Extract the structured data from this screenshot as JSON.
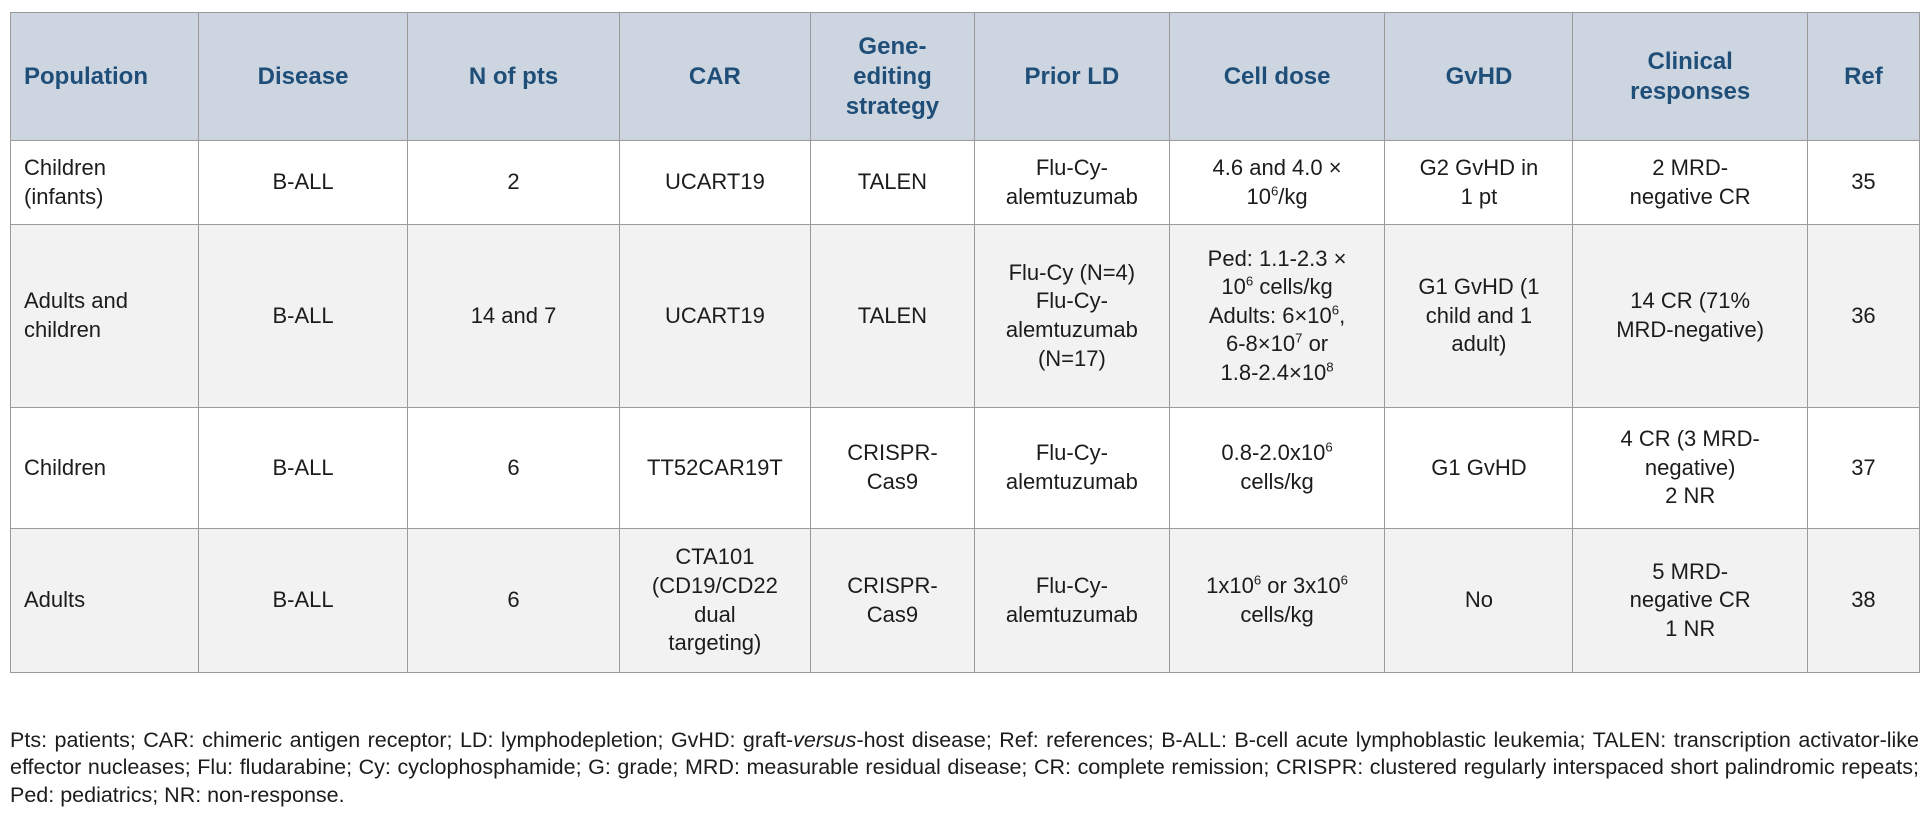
{
  "theme": {
    "header_bg": "#cdd6e0",
    "header_text": "#1f4e79",
    "row_bg": "#ffffff",
    "row_alt_bg": "#f2f2f2",
    "border_color": "#9a9a9a",
    "body_text": "#1c1c1c"
  },
  "table": {
    "columns": [
      {
        "id": "population",
        "label": "Population"
      },
      {
        "id": "disease",
        "label": "Disease"
      },
      {
        "id": "n-of-pts",
        "label": "N of pts"
      },
      {
        "id": "car",
        "label": "CAR"
      },
      {
        "id": "gene-editing-strategy",
        "label": "Gene-\nediting\nstrategy"
      },
      {
        "id": "prior-ld",
        "label": "Prior LD"
      },
      {
        "id": "cell-dose",
        "label": "Cell dose"
      },
      {
        "id": "gvhd",
        "label": "GvHD"
      },
      {
        "id": "clinical-responses",
        "label": "Clinical\nresponses"
      },
      {
        "id": "ref",
        "label": "Ref"
      }
    ],
    "rows": [
      {
        "cells": [
          "Children\n(infants)",
          "B-ALL",
          "2",
          "UCART19",
          "TALEN",
          "Flu-Cy-\nalemtuzumab",
          "4.6 and 4.0 ×\n10^6/kg",
          "G2 GvHD in\n1 pt",
          "2 MRD-\nnegative CR",
          "35"
        ]
      },
      {
        "cells": [
          "Adults and\nchildren",
          "B-ALL",
          "14 and 7",
          "UCART19",
          "TALEN",
          "Flu-Cy (N=4)\nFlu-Cy-\nalemtuzumab\n(N=17)",
          "Ped: 1.1-2.3 ×\n10^6 cells/kg\nAdults: 6×10^6,\n6-8×10^7 or\n1.8-2.4×10^8",
          "G1 GvHD (1\nchild and 1\nadult)",
          "14 CR (71%\nMRD-negative)",
          "36"
        ]
      },
      {
        "cells": [
          "Children",
          "B-ALL",
          "6",
          "TT52CAR19T",
          "CRISPR-\nCas9",
          "Flu-Cy-\nalemtuzumab",
          "0.8-2.0x10^6\ncells/kg",
          "G1 GvHD",
          "4 CR (3 MRD-\nnegative)\n2 NR",
          "37"
        ]
      },
      {
        "cells": [
          "Adults",
          "B-ALL",
          "6",
          "CTA101\n(CD19/CD22\ndual\ntargeting)",
          "CRISPR-\nCas9",
          "Flu-Cy-\nalemtuzumab",
          "1x10^6 or 3x10^6\ncells/kg",
          "No",
          "5 MRD-\nnegative CR\n1 NR",
          "38"
        ]
      }
    ]
  },
  "footnote": {
    "text": "Pts: patients; CAR: chimeric antigen receptor; LD: lymphodepletion; GvHD: graft-_versus_-host disease; Ref: references; B-ALL: B-cell acute lymphoblastic leukemia; TALEN: transcription activator-like effector nucleases; Flu: fludarabine; Cy: cyclophosphamide; G: grade; MRD: measurable residual disease; CR: complete remission; CRISPR: clustered regularly interspaced short palindromic repeats; Ped: pediatrics; NR: non-response."
  }
}
